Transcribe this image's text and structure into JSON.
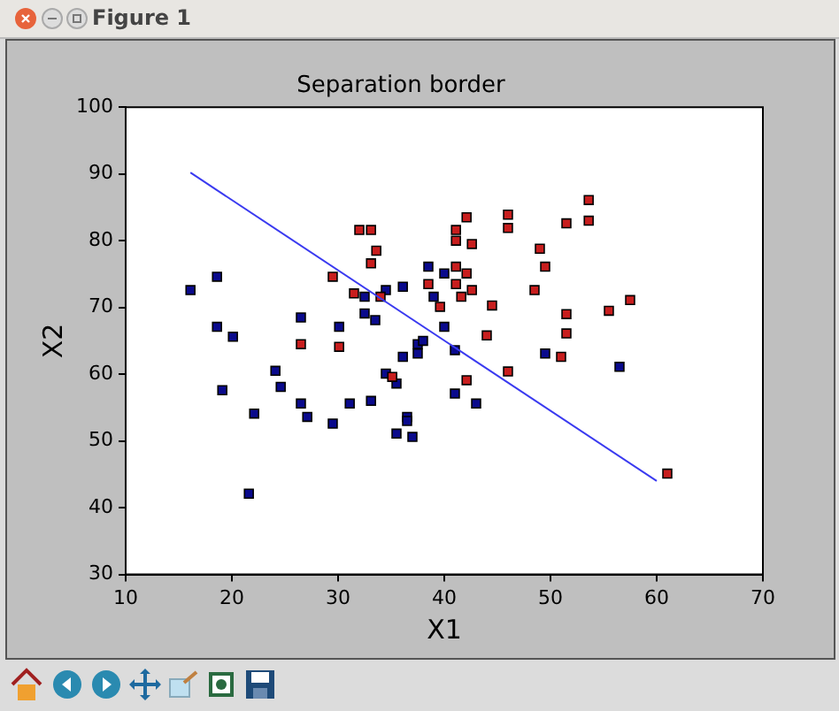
{
  "chart_data": {
    "type": "scatter",
    "title": "Separation border",
    "xlabel": "X1",
    "ylabel": "X2",
    "annotations": [
      "Figure 1"
    ],
    "xlim": [
      10,
      70
    ],
    "xticks": [
      10,
      20,
      30,
      40,
      50,
      60,
      70
    ],
    "ylim": [
      30,
      100
    ],
    "yticks": [
      30,
      40,
      50,
      60,
      70,
      80,
      90,
      100
    ],
    "grid": false,
    "legend": false,
    "marker": "square",
    "series": [
      {
        "color": "#c81e1e",
        "x": [
          32.0,
          33.1,
          33.6,
          33.1,
          29.5,
          31.5,
          34.0,
          38.5,
          39.6,
          26.5,
          30.1,
          35.1,
          41.1,
          41.1,
          42.1,
          42.6,
          41.1,
          42.1,
          41.1,
          42.6,
          41.6,
          44.5,
          44.0,
          42.1,
          46.0,
          46.0,
          46.0,
          49.0,
          49.5,
          48.5,
          51.5,
          53.6,
          53.6,
          51.5,
          51.5,
          51.0,
          55.5,
          57.5,
          61.0
        ],
        "values": [
          81.6,
          81.6,
          78.5,
          76.6,
          74.6,
          72.1,
          71.6,
          73.5,
          70.1,
          64.5,
          64.1,
          59.6,
          81.6,
          80.0,
          83.5,
          79.5,
          76.1,
          75.1,
          73.5,
          72.6,
          71.6,
          70.3,
          65.8,
          59.1,
          83.9,
          81.9,
          60.4,
          78.8,
          76.1,
          72.6,
          82.6,
          86.1,
          83.0,
          69.0,
          66.1,
          62.6,
          69.5,
          71.1,
          45.1
        ]
      },
      {
        "color": "#0a0a8c",
        "x": [
          16.1,
          18.6,
          18.6,
          20.1,
          19.1,
          22.1,
          21.6,
          24.1,
          24.6,
          26.5,
          26.5,
          27.1,
          29.5,
          30.1,
          31.1,
          33.1,
          32.5,
          32.5,
          33.5,
          34.5,
          36.1,
          34.5,
          35.5,
          37.5,
          38.0,
          37.5,
          36.1,
          36.5,
          36.5,
          35.5,
          37.0,
          38.5,
          40.0,
          39.0,
          40.0,
          41.0,
          41.0,
          43.0,
          49.5,
          56.5
        ],
        "values": [
          72.6,
          74.6,
          67.1,
          65.6,
          57.6,
          54.1,
          42.1,
          60.5,
          58.1,
          68.5,
          55.6,
          53.6,
          52.6,
          67.1,
          55.6,
          56.0,
          71.6,
          69.1,
          68.1,
          72.6,
          73.1,
          60.1,
          58.6,
          64.5,
          65.0,
          63.1,
          62.6,
          53.6,
          53.0,
          51.1,
          50.6,
          76.1,
          75.1,
          71.6,
          67.1,
          63.6,
          57.1,
          55.6,
          63.1,
          61.1
        ]
      },
      {
        "type": "line",
        "color": "#3a3af0",
        "marker": "none",
        "x": [
          16.1,
          60.0
        ],
        "values": [
          90.2,
          44.0
        ]
      }
    ]
  }
}
